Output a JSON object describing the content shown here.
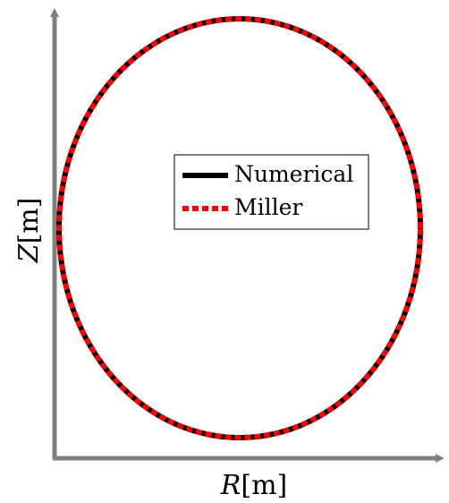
{
  "chart_data": {
    "type": "line",
    "title": "",
    "xlabel": {
      "var": "R",
      "unit": "[m]"
    },
    "ylabel": {
      "var": "Z",
      "unit": "[m]"
    },
    "grid": false,
    "legend_position": "center",
    "series": [
      {
        "name": "Numerical",
        "color": "#000000",
        "style": "solid"
      },
      {
        "name": "Miller",
        "color": "#ff0000",
        "style": "dotted"
      }
    ]
  }
}
